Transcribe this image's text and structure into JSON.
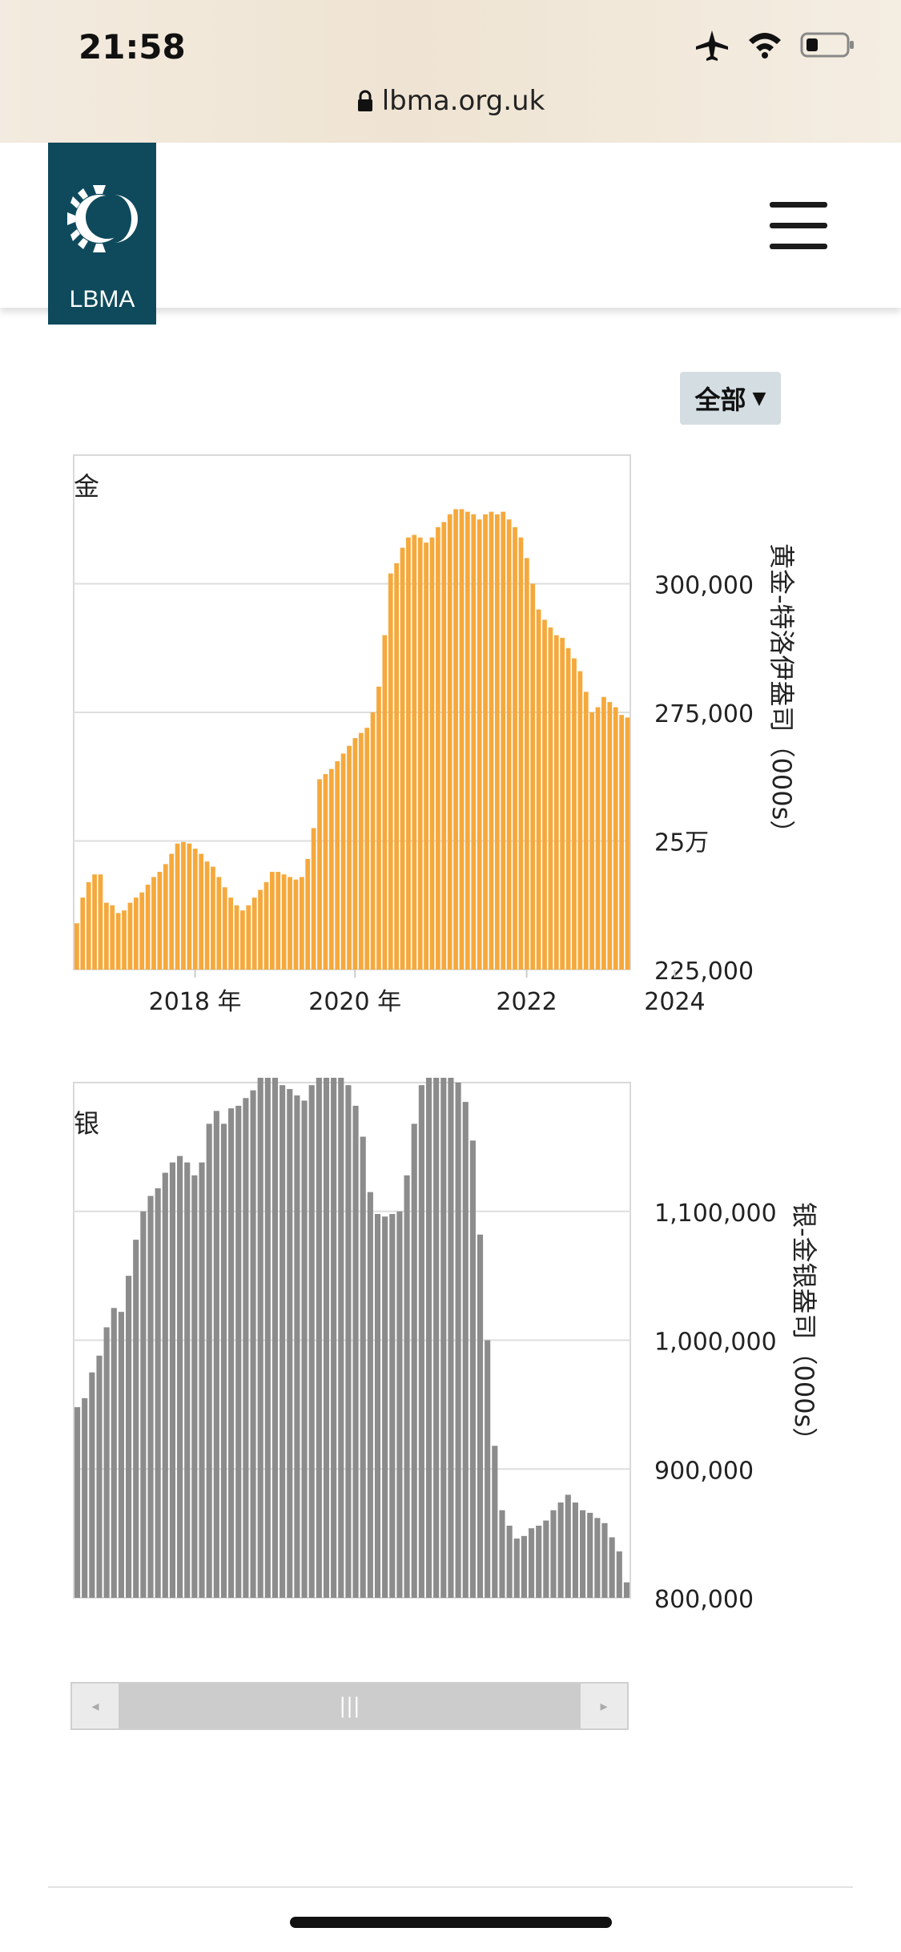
{
  "status_bar": {
    "time": "21:58",
    "url": "lbma.org.uk"
  },
  "header": {
    "logo_text": "LBMA"
  },
  "controls": {
    "range_label": "全部"
  },
  "chart_data": [
    {
      "type": "bar",
      "title": "金",
      "ylabel": "黄金-特洛伊盎司（000s）",
      "ylim": [
        225000,
        325000
      ],
      "y_ticks": [
        {
          "value": 225000,
          "label": "225,000"
        },
        {
          "value": 250000,
          "label": "25万"
        },
        {
          "value": 275000,
          "label": "275,000"
        },
        {
          "value": 300000,
          "label": "300,000"
        }
      ],
      "x_ticks": [
        {
          "index": 20,
          "label": "2018 年"
        },
        {
          "index": 47,
          "label": "2020 年"
        },
        {
          "index": 76,
          "label": "2022"
        },
        {
          "index": 101,
          "label": "2024"
        }
      ],
      "color": "#f5a93c",
      "values": [
        234000,
        239000,
        242000,
        243500,
        243500,
        238000,
        237500,
        236000,
        236500,
        238000,
        239000,
        240000,
        241500,
        243000,
        244000,
        245500,
        247500,
        249500,
        249800,
        249500,
        248500,
        247500,
        246000,
        245000,
        243000,
        241000,
        239000,
        237500,
        236500,
        237500,
        239000,
        240500,
        242000,
        244000,
        244000,
        243500,
        243000,
        242500,
        243000,
        246500,
        252500,
        262000,
        263000,
        264000,
        265500,
        267000,
        268500,
        270000,
        271000,
        272000,
        275000,
        280000,
        290000,
        302000,
        304000,
        307000,
        309000,
        309500,
        309000,
        308000,
        309000,
        311000,
        312000,
        313500,
        314500,
        314500,
        314000,
        313500,
        312500,
        313500,
        314000,
        313500,
        314000,
        312500,
        311000,
        309000,
        305000,
        300000,
        295000,
        293000,
        291500,
        290000,
        289500,
        287500,
        285500,
        283000,
        279000,
        275000,
        276000,
        278000,
        277000,
        276000,
        274500,
        274000
      ],
      "series": [
        {
          "name": "",
          "values": []
        }
      ]
    },
    {
      "type": "bar",
      "title": "银",
      "ylabel": "银-金银盎司（000s）",
      "ylim": [
        800000,
        1200000
      ],
      "y_ticks": [
        {
          "value": 800000,
          "label": "800,000"
        },
        {
          "value": 900000,
          "label": "900,000"
        },
        {
          "value": 1000000,
          "label": "1,000,000"
        },
        {
          "value": 1100000,
          "label": "1,100,000"
        }
      ],
      "color": "#8c8c8c",
      "values": [
        948000,
        955000,
        975000,
        988000,
        1010000,
        1025000,
        1022000,
        1050000,
        1078000,
        1100000,
        1112000,
        1118000,
        1130000,
        1138000,
        1143000,
        1138000,
        1128000,
        1138000,
        1168000,
        1178000,
        1168000,
        1180000,
        1182000,
        1188000,
        1194000,
        1205000,
        1212000,
        1208000,
        1198000,
        1195000,
        1190000,
        1186000,
        1198000,
        1208000,
        1212000,
        1218000,
        1225000,
        1198000,
        1182000,
        1158000,
        1115000,
        1098000,
        1096000,
        1098000,
        1100000,
        1128000,
        1168000,
        1198000,
        1212000,
        1220000,
        1218000,
        1210000,
        1200000,
        1185000,
        1155000,
        1082000,
        1000000,
        918000,
        868000,
        856000,
        846000,
        848000,
        854000,
        856000,
        860000,
        868000,
        874000,
        880000,
        874000,
        868000,
        866000,
        862000,
        858000,
        847000,
        836000,
        812000
      ],
      "series": [
        {
          "name": "",
          "values": []
        }
      ]
    }
  ],
  "scroller": {
    "thumb_grip": "|||",
    "left_arrow": "◂",
    "right_arrow": "▸"
  }
}
